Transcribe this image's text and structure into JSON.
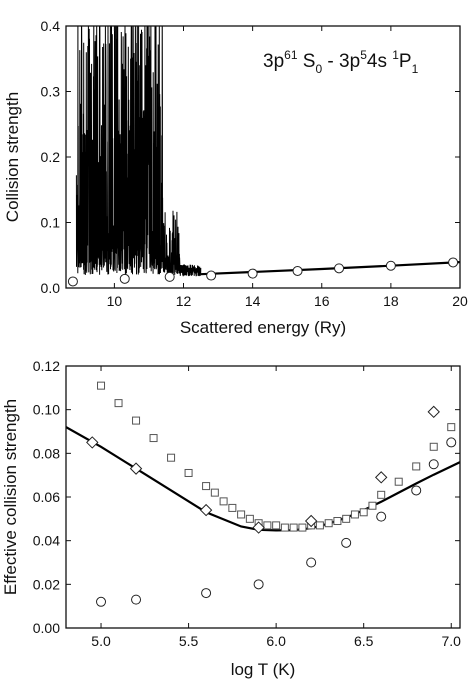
{
  "chart_data": [
    {
      "type": "line",
      "title": "",
      "annotation": {
        "base": [
          "3p",
          " S",
          " - 3p",
          "4s ",
          "P"
        ],
        "sup": [
          "6",
          "1",
          "5",
          "1"
        ],
        "sub": [
          "0",
          "1"
        ]
      },
      "xlabel": "Scattered energy (Ry)",
      "ylabel": "Collision strength",
      "xlim": [
        8.6,
        20.0
      ],
      "ylim": [
        0.0,
        0.4
      ],
      "xticks": [
        10,
        12,
        14,
        16,
        18,
        20
      ],
      "yticks": [
        0.0,
        0.1,
        0.2,
        0.3,
        0.4
      ],
      "xtick_labels": [
        "10",
        "12",
        "14",
        "16",
        "18",
        "20"
      ],
      "ytick_labels": [
        "0.0",
        "0.1",
        "0.2",
        "0.3",
        "0.4"
      ],
      "grid": false,
      "series": [
        {
          "style": "line",
          "x": [
            12.5,
            14,
            16,
            18,
            20
          ],
          "y": [
            0.021,
            0.0245,
            0.029,
            0.034,
            0.0395
          ]
        },
        {
          "style": "resonance-line",
          "x_range": [
            8.9,
            12.5
          ]
        },
        {
          "style": "open-circle",
          "x": [
            8.8,
            10.3,
            11.6,
            12.8,
            14.0,
            15.3,
            16.5,
            18.0,
            19.8
          ],
          "y": [
            0.01,
            0.014,
            0.017,
            0.019,
            0.022,
            0.026,
            0.03,
            0.034,
            0.039
          ]
        }
      ]
    },
    {
      "type": "scatter",
      "title": "",
      "xlabel": "log T (K)",
      "ylabel": "Effective collision strength",
      "xlim": [
        4.8,
        7.05
      ],
      "ylim": [
        0.0,
        0.12
      ],
      "xticks": [
        5.0,
        5.5,
        6.0,
        6.5,
        7.0
      ],
      "yticks": [
        0.0,
        0.02,
        0.04,
        0.06,
        0.08,
        0.1,
        0.12
      ],
      "xtick_labels": [
        "5.0",
        "5.5",
        "6.0",
        "6.5",
        "7.0"
      ],
      "ytick_labels": [
        "0.00",
        "0.02",
        "0.04",
        "0.06",
        "0.08",
        "0.10",
        "0.12"
      ],
      "grid": false,
      "series": [
        {
          "style": "line",
          "x": [
            4.8,
            5.0,
            5.2,
            5.4,
            5.6,
            5.8,
            5.9,
            6.0,
            6.1,
            6.2,
            6.3,
            6.4,
            6.5,
            6.6,
            6.7,
            6.8,
            6.9,
            7.0,
            7.05
          ],
          "y": [
            0.092,
            0.083,
            0.073,
            0.063,
            0.053,
            0.0465,
            0.045,
            0.0447,
            0.0448,
            0.0457,
            0.0478,
            0.0505,
            0.054,
            0.0578,
            0.062,
            0.0662,
            0.0702,
            0.074,
            0.076
          ]
        },
        {
          "style": "open-square",
          "x": [
            5.0,
            5.1,
            5.2,
            5.3,
            5.4,
            5.5,
            5.6,
            5.65,
            5.7,
            5.75,
            5.8,
            5.85,
            5.9,
            5.95,
            6.0,
            6.05,
            6.1,
            6.15,
            6.2,
            6.25,
            6.3,
            6.35,
            6.4,
            6.45,
            6.5,
            6.55,
            6.6,
            6.7,
            6.8,
            6.9,
            7.0
          ],
          "y": [
            0.111,
            0.103,
            0.095,
            0.087,
            0.078,
            0.071,
            0.065,
            0.062,
            0.058,
            0.055,
            0.052,
            0.05,
            0.048,
            0.047,
            0.047,
            0.046,
            0.046,
            0.046,
            0.047,
            0.047,
            0.048,
            0.049,
            0.05,
            0.052,
            0.053,
            0.056,
            0.061,
            0.067,
            0.074,
            0.083,
            0.092
          ]
        },
        {
          "style": "open-diamond",
          "x": [
            4.95,
            5.2,
            5.6,
            5.9,
            6.2,
            6.6,
            6.9
          ],
          "y": [
            0.085,
            0.073,
            0.054,
            0.046,
            0.049,
            0.069,
            0.099
          ]
        },
        {
          "style": "open-circle",
          "x": [
            5.0,
            5.2,
            5.6,
            5.9,
            6.2,
            6.4,
            6.6,
            6.8,
            6.9,
            7.0
          ],
          "y": [
            0.012,
            0.013,
            0.016,
            0.02,
            0.03,
            0.039,
            0.051,
            0.063,
            0.075,
            0.085
          ]
        }
      ]
    }
  ]
}
